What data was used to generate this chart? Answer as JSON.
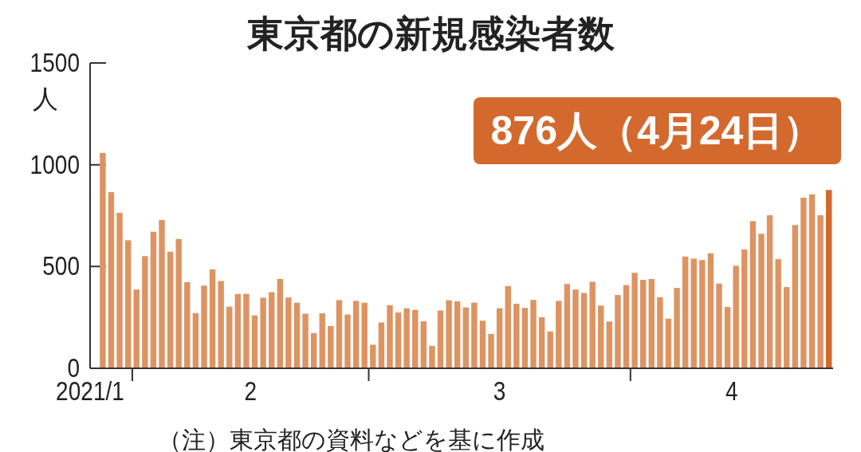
{
  "chart_data": {
    "type": "bar",
    "title": "東京都の新規感染者数",
    "ylabel": "人",
    "annotations": [
      "876人（4月24日）",
      "（注）東京都の資料などを基に作成"
    ],
    "x": [
      "2021-01-28",
      "2021-01-29",
      "2021-01-30",
      "2021-01-31",
      "2021-02-01",
      "2021-02-02",
      "2021-02-03",
      "2021-02-04",
      "2021-02-05",
      "2021-02-06",
      "2021-02-07",
      "2021-02-08",
      "2021-02-09",
      "2021-02-10",
      "2021-02-11",
      "2021-02-12",
      "2021-02-13",
      "2021-02-14",
      "2021-02-15",
      "2021-02-16",
      "2021-02-17",
      "2021-02-18",
      "2021-02-19",
      "2021-02-20",
      "2021-02-21",
      "2021-02-22",
      "2021-02-23",
      "2021-02-24",
      "2021-02-25",
      "2021-02-26",
      "2021-02-27",
      "2021-02-28",
      "2021-03-01",
      "2021-03-02",
      "2021-03-03",
      "2021-03-04",
      "2021-03-05",
      "2021-03-06",
      "2021-03-07",
      "2021-03-08",
      "2021-03-09",
      "2021-03-10",
      "2021-03-11",
      "2021-03-12",
      "2021-03-13",
      "2021-03-14",
      "2021-03-15",
      "2021-03-16",
      "2021-03-17",
      "2021-03-18",
      "2021-03-19",
      "2021-03-20",
      "2021-03-21",
      "2021-03-22",
      "2021-03-23",
      "2021-03-24",
      "2021-03-25",
      "2021-03-26",
      "2021-03-27",
      "2021-03-28",
      "2021-03-29",
      "2021-03-30",
      "2021-03-31",
      "2021-04-01",
      "2021-04-02",
      "2021-04-03",
      "2021-04-04",
      "2021-04-05",
      "2021-04-06",
      "2021-04-07",
      "2021-04-08",
      "2021-04-09",
      "2021-04-10",
      "2021-04-11",
      "2021-04-12",
      "2021-04-13",
      "2021-04-14",
      "2021-04-15",
      "2021-04-16",
      "2021-04-17",
      "2021-04-18",
      "2021-04-19",
      "2021-04-20",
      "2021-04-21",
      "2021-04-22",
      "2021-04-23",
      "2021-04-24"
    ],
    "values": [
      1058,
      866,
      764,
      629,
      387,
      551,
      671,
      729,
      573,
      635,
      423,
      271,
      406,
      486,
      429,
      303,
      365,
      366,
      260,
      347,
      374,
      439,
      348,
      322,
      268,
      173,
      270,
      208,
      335,
      264,
      331,
      322,
      116,
      225,
      310,
      274,
      295,
      287,
      231,
      110,
      284,
      334,
      329,
      299,
      323,
      234,
      169,
      295,
      404,
      317,
      297,
      336,
      251,
      181,
      331,
      414,
      387,
      370,
      425,
      308,
      230,
      360,
      409,
      469,
      435,
      439,
      349,
      244,
      395,
      549,
      539,
      532,
      565,
      416,
      301,
      504,
      584,
      723,
      661,
      752,
      536,
      399,
      704,
      838,
      855,
      752,
      876
    ],
    "colors": [
      "#dd9462",
      "#dd9462",
      "#dd9462",
      "#dd9462",
      "#dd9462",
      "#dd9462",
      "#dd9462",
      "#dd9462",
      "#dd9462",
      "#dd9462",
      "#dd9462",
      "#dd9462",
      "#dd9462",
      "#dd9462",
      "#dd9462",
      "#dd9462",
      "#dd9462",
      "#dd9462",
      "#dd9462",
      "#dd9462",
      "#dd9462",
      "#dd9462",
      "#dd9462",
      "#dd9462",
      "#dd9462",
      "#dd9462",
      "#dd9462",
      "#dd9462",
      "#dd9462",
      "#dd9462",
      "#dd9462",
      "#dd9462",
      "#dd9462",
      "#dd9462",
      "#dd9462",
      "#dd9462",
      "#dd9462",
      "#dd9462",
      "#dd9462",
      "#dd9462",
      "#dd9462",
      "#dd9462",
      "#dd9462",
      "#dd9462",
      "#dd9462",
      "#dd9462",
      "#dd9462",
      "#dd9462",
      "#dd9462",
      "#dd9462",
      "#dd9462",
      "#dd9462",
      "#dd9462",
      "#dd9462",
      "#dd9462",
      "#dd9462",
      "#dd9462",
      "#dd9462",
      "#dd9462",
      "#dd9462",
      "#dd9462",
      "#dd9462",
      "#dd9462",
      "#dd9462",
      "#dd9462",
      "#dd9462",
      "#dd9462",
      "#dd9462",
      "#dd9462",
      "#dd9462",
      "#dd9462",
      "#dd9462",
      "#dd9462",
      "#dd9462",
      "#dd9462",
      "#dd9462",
      "#dd9462",
      "#dd9462",
      "#dd9462",
      "#dd9462",
      "#dd9462",
      "#dd9462",
      "#dd9462",
      "#dd9462",
      "#dd9462",
      "#dd9462",
      "#d2692a"
    ],
    "xlim": [
      "2021-01-26T12:00",
      "2021-04-24T12:00"
    ],
    "xticks": [
      {
        "value": "2021-01-26T12:00",
        "label": "2021/1"
      },
      {
        "value": "2021-01-31T12:00",
        "label": null
      },
      {
        "value": "2021-02-14T12:00",
        "label": "2"
      },
      {
        "value": "2021-02-28T12:00",
        "label": null
      },
      {
        "value": "2021-03-16",
        "label": "3"
      },
      {
        "value": "2021-03-31T12:00",
        "label": null
      },
      {
        "value": "2021-04-12T12:00",
        "label": "4"
      }
    ],
    "ylim": [
      0,
      1500
    ],
    "yticks": [
      0,
      500,
      1000,
      1500
    ]
  }
}
